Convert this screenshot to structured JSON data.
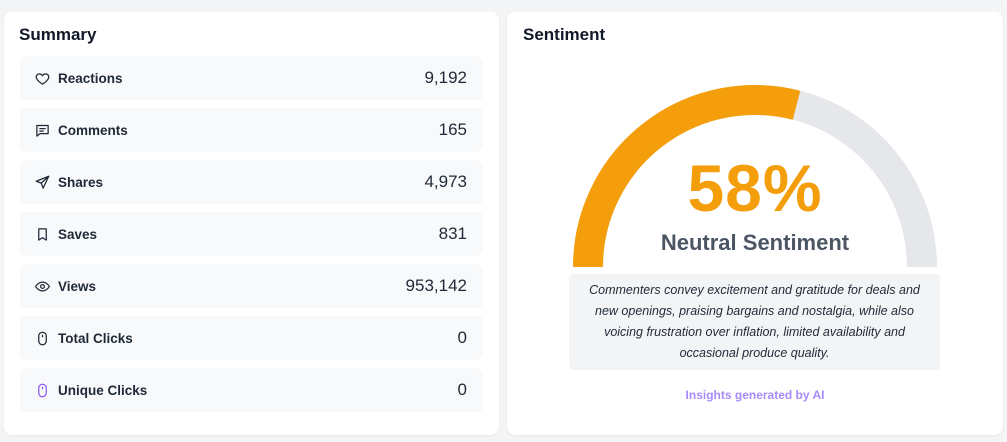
{
  "summary": {
    "title": "Summary",
    "items": [
      {
        "icon": "heart-icon",
        "label": "Reactions",
        "value": "9,192"
      },
      {
        "icon": "comment-icon",
        "label": "Comments",
        "value": "165"
      },
      {
        "icon": "send-icon",
        "label": "Shares",
        "value": "4,973"
      },
      {
        "icon": "bookmark-icon",
        "label": "Saves",
        "value": "831"
      },
      {
        "icon": "eye-icon",
        "label": "Views",
        "value": "953,142"
      },
      {
        "icon": "mouse-icon",
        "label": "Total Clicks",
        "value": "0"
      },
      {
        "icon": "mouse-icon",
        "label": "Unique Clicks",
        "value": "0"
      }
    ]
  },
  "sentiment": {
    "title": "Sentiment",
    "percent_value": 58,
    "percent_label": "58%",
    "label": "Neutral Sentiment",
    "description": "Commenters convey excitement and gratitude for deals and new openings, praising bargains and nostalgia, while also voicing frustration over inflation, limited availability and occasional produce quality.",
    "ai_note": "Insights generated by AI",
    "colors": {
      "fill": "#f59e0b",
      "track": "#e5e7eb",
      "ai_note": "#a78bfa"
    }
  }
}
